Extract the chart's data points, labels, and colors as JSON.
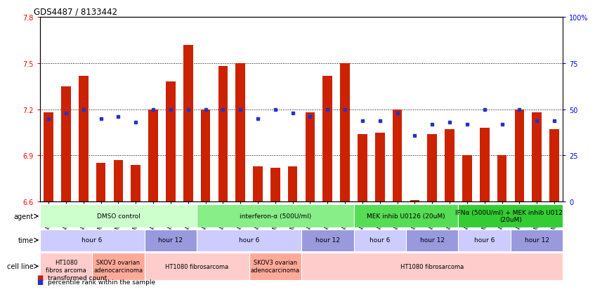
{
  "title": "GDS4487 / 8133442",
  "samples": [
    "GSM768611",
    "GSM768612",
    "GSM768613",
    "GSM768635",
    "GSM768636",
    "GSM768637",
    "GSM768614",
    "GSM768615",
    "GSM768616",
    "GSM768617",
    "GSM768618",
    "GSM768619",
    "GSM768638",
    "GSM768639",
    "GSM768640",
    "GSM768620",
    "GSM768621",
    "GSM768622",
    "GSM768623",
    "GSM768624",
    "GSM768625",
    "GSM768626",
    "GSM768627",
    "GSM768628",
    "GSM768629",
    "GSM768630",
    "GSM768631",
    "GSM768632",
    "GSM768633",
    "GSM768634"
  ],
  "bar_values": [
    7.18,
    7.35,
    7.42,
    6.85,
    6.87,
    6.84,
    7.2,
    7.38,
    7.62,
    7.2,
    7.48,
    7.5,
    6.83,
    6.82,
    6.83,
    7.18,
    7.42,
    7.5,
    7.04,
    7.05,
    7.2,
    6.61,
    7.04,
    7.07,
    6.9,
    7.08,
    6.9,
    7.2,
    7.18,
    7.07
  ],
  "percentile_values": [
    45,
    48,
    50,
    45,
    46,
    43,
    50,
    50,
    50,
    50,
    50,
    50,
    45,
    50,
    48,
    46,
    50,
    50,
    44,
    44,
    48,
    36,
    42,
    43,
    42,
    50,
    42,
    50,
    44,
    44
  ],
  "ylim_left": [
    6.6,
    7.8
  ],
  "ylim_right": [
    0,
    100
  ],
  "yticks_left": [
    6.6,
    6.9,
    7.2,
    7.5,
    7.8
  ],
  "yticks_right": [
    0,
    25,
    50,
    75,
    100
  ],
  "bar_color": "#cc2200",
  "dot_color": "#2233cc",
  "background_color": "#ffffff",
  "agent_blocks": [
    {
      "text": "DMSO control",
      "start": 0,
      "end": 9,
      "color": "#ccffcc"
    },
    {
      "text": "interferon-α (500U/ml)",
      "start": 9,
      "end": 18,
      "color": "#88ee88"
    },
    {
      "text": "MEK inhib U0126 (20uM)",
      "start": 18,
      "end": 24,
      "color": "#55dd55"
    },
    {
      "text": "IFNα (500U/ml) + MEK inhib U0126\n(20uM)",
      "start": 24,
      "end": 30,
      "color": "#33cc33"
    }
  ],
  "time_blocks": [
    {
      "text": "hour 6",
      "start": 0,
      "end": 6,
      "color": "#ccccff"
    },
    {
      "text": "hour 12",
      "start": 6,
      "end": 9,
      "color": "#9999dd"
    },
    {
      "text": "hour 6",
      "start": 9,
      "end": 15,
      "color": "#ccccff"
    },
    {
      "text": "hour 12",
      "start": 15,
      "end": 18,
      "color": "#9999dd"
    },
    {
      "text": "hour 6",
      "start": 18,
      "end": 21,
      "color": "#ccccff"
    },
    {
      "text": "hour 12",
      "start": 21,
      "end": 24,
      "color": "#9999dd"
    },
    {
      "text": "hour 6",
      "start": 24,
      "end": 27,
      "color": "#ccccff"
    },
    {
      "text": "hour 12",
      "start": 27,
      "end": 30,
      "color": "#9999dd"
    }
  ],
  "cellline_blocks": [
    {
      "text": "HT1080\nfibros arcoma",
      "start": 0,
      "end": 3,
      "color": "#ffcccc"
    },
    {
      "text": "SKOV3 ovarian\nadenocarcinoma",
      "start": 3,
      "end": 6,
      "color": "#ffaa99"
    },
    {
      "text": "HT1080 fibrosarcoma",
      "start": 6,
      "end": 12,
      "color": "#ffcccc"
    },
    {
      "text": "SKOV3 ovarian\nadenocarcinoma",
      "start": 12,
      "end": 15,
      "color": "#ffaa99"
    },
    {
      "text": "HT1080 fibrosarcoma",
      "start": 15,
      "end": 30,
      "color": "#ffcccc"
    }
  ]
}
